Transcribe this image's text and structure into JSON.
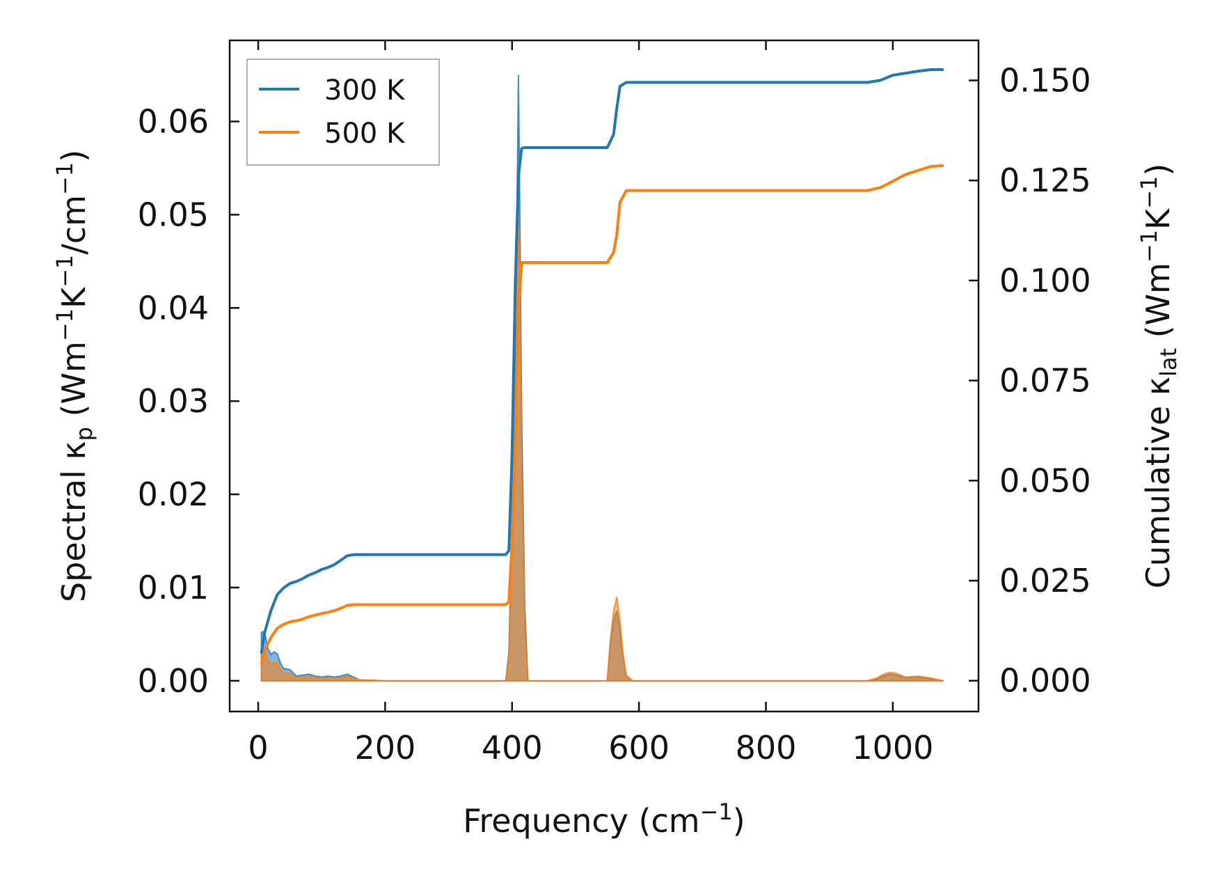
{
  "chart_data": {
    "type": "line",
    "x_axis": {
      "label": "Frequency",
      "unit_base": "cm",
      "unit_exp": "−1",
      "lim": [
        -45,
        1135
      ],
      "ticks": [
        0,
        200,
        400,
        600,
        800,
        1000
      ],
      "tick_labels": [
        "0",
        "200",
        "400",
        "600",
        "800",
        "1000"
      ]
    },
    "y_left": {
      "label_pre": "Spectral κ",
      "label_sub": "p",
      "label_unit": {
        "a": " (Wm",
        "e1": "−1",
        "b": "K",
        "e2": "−1",
        "c": "/cm",
        "e3": "−1",
        "d": ")"
      },
      "lim": [
        -0.0033,
        0.0687
      ],
      "ticks": [
        0,
        0.01,
        0.02,
        0.03,
        0.04,
        0.05,
        0.06
      ],
      "tick_labels": [
        "0.00",
        "0.01",
        "0.02",
        "0.03",
        "0.04",
        "0.05",
        "0.06"
      ]
    },
    "y_right": {
      "label_pre": "Cumulative κ",
      "label_sub": "lat",
      "label_unit": {
        "a": " (Wm",
        "e1": "−1",
        "b": "K",
        "e2": "−1",
        "c": ")"
      },
      "lim": [
        -0.0077,
        0.16
      ],
      "ticks": [
        0,
        0.025,
        0.05,
        0.075,
        0.1,
        0.125,
        0.15
      ],
      "tick_labels": [
        "0.000",
        "0.025",
        "0.050",
        "0.075",
        "0.100",
        "0.125",
        "0.150"
      ]
    },
    "legend": {
      "position": "upper-left"
    },
    "series": [
      {
        "name": "300 K",
        "color": "#1f77b4",
        "cumulative": {
          "x": [
            5,
            10,
            20,
            30,
            40,
            50,
            60,
            70,
            80,
            90,
            100,
            110,
            120,
            130,
            140,
            150,
            160,
            200,
            300,
            390,
            395,
            400,
            405,
            410,
            415,
            420,
            430,
            500,
            550,
            560,
            565,
            570,
            580,
            600,
            800,
            960,
            980,
            1000,
            1020,
            1040,
            1060,
            1080
          ],
          "y": [
            0.0068,
            0.012,
            0.0175,
            0.0215,
            0.0232,
            0.0243,
            0.0248,
            0.0255,
            0.0264,
            0.027,
            0.0278,
            0.0283,
            0.029,
            0.0301,
            0.0312,
            0.0315,
            0.0315,
            0.0315,
            0.0315,
            0.0315,
            0.0325,
            0.0567,
            0.0985,
            0.126,
            0.133,
            0.1332,
            0.1332,
            0.1332,
            0.1332,
            0.1365,
            0.143,
            0.1485,
            0.1495,
            0.1495,
            0.1495,
            0.1495,
            0.15,
            0.1513,
            0.1518,
            0.1523,
            0.1527,
            0.1527
          ]
        },
        "spectral": {
          "x": [
            5,
            10,
            15,
            20,
            25,
            30,
            35,
            40,
            50,
            60,
            70,
            80,
            90,
            100,
            110,
            120,
            130,
            140,
            150,
            160,
            200,
            300,
            390,
            395,
            400,
            405,
            410,
            412,
            415,
            420,
            425,
            430,
            500,
            545,
            550,
            555,
            560,
            565,
            570,
            575,
            580,
            590,
            800,
            960,
            975,
            985,
            995,
            1005,
            1020,
            1040,
            1060,
            1080
          ],
          "y": [
            0.0052,
            0.0053,
            0.0035,
            0.0028,
            0.0031,
            0.0029,
            0.0019,
            0.0013,
            0.0012,
            0.0005,
            0.0006,
            0.0007,
            0.0005,
            0.0004,
            0.0005,
            0.0004,
            0.0005,
            0.0007,
            0.0004,
            0.0001,
            0.0,
            0.0,
            0.0,
            0.003,
            0.018,
            0.032,
            0.065,
            0.052,
            0.029,
            0.008,
            0.0,
            0.0,
            0.0,
            0.0,
            0.0,
            0.004,
            0.0065,
            0.0075,
            0.0055,
            0.0025,
            0.0005,
            0.0,
            0.0,
            0.0,
            0.0002,
            0.0005,
            0.0007,
            0.0006,
            0.0003,
            0.0004,
            0.0002,
            0.0
          ]
        }
      },
      {
        "name": "500 K",
        "color": "#ff7f0e",
        "cumulative": {
          "x": [
            5,
            10,
            20,
            30,
            40,
            50,
            60,
            70,
            80,
            90,
            100,
            110,
            120,
            130,
            140,
            150,
            160,
            200,
            300,
            390,
            395,
            400,
            405,
            410,
            415,
            420,
            430,
            500,
            550,
            560,
            565,
            570,
            580,
            600,
            800,
            960,
            980,
            1000,
            1020,
            1040,
            1060,
            1080
          ],
          "y": [
            0.004,
            0.0075,
            0.0108,
            0.0131,
            0.0141,
            0.0147,
            0.015,
            0.0154,
            0.016,
            0.0164,
            0.0168,
            0.0171,
            0.0175,
            0.0181,
            0.0188,
            0.019,
            0.019,
            0.019,
            0.019,
            0.019,
            0.0197,
            0.0345,
            0.0595,
            0.092,
            0.1045,
            0.1045,
            0.1045,
            0.1045,
            0.1045,
            0.107,
            0.1115,
            0.1195,
            0.1225,
            0.1225,
            0.1225,
            0.1225,
            0.1232,
            0.1248,
            0.1265,
            0.1275,
            0.1285,
            0.1287
          ]
        },
        "spectral": {
          "x": [
            5,
            10,
            15,
            20,
            25,
            30,
            35,
            40,
            50,
            60,
            70,
            80,
            90,
            100,
            110,
            120,
            130,
            140,
            150,
            160,
            200,
            300,
            390,
            395,
            400,
            405,
            410,
            412,
            415,
            420,
            425,
            430,
            500,
            545,
            550,
            555,
            560,
            565,
            570,
            575,
            580,
            590,
            800,
            960,
            975,
            985,
            995,
            1005,
            1020,
            1040,
            1060,
            1080
          ],
          "y": [
            0.0032,
            0.0033,
            0.0022,
            0.0018,
            0.002,
            0.0019,
            0.0012,
            0.0008,
            0.0008,
            0.0003,
            0.0004,
            0.0005,
            0.0003,
            0.0003,
            0.0003,
            0.0003,
            0.0003,
            0.0005,
            0.0003,
            0.0001,
            0.0,
            0.0,
            0.0,
            0.0025,
            0.015,
            0.026,
            0.052,
            0.042,
            0.023,
            0.006,
            0.0,
            0.0,
            0.0,
            0.0,
            0.0,
            0.0045,
            0.0075,
            0.009,
            0.0065,
            0.0028,
            0.0006,
            0.0,
            0.0,
            0.0,
            0.0003,
            0.0007,
            0.0009,
            0.0008,
            0.0004,
            0.0005,
            0.0003,
            0.0
          ]
        }
      }
    ]
  }
}
